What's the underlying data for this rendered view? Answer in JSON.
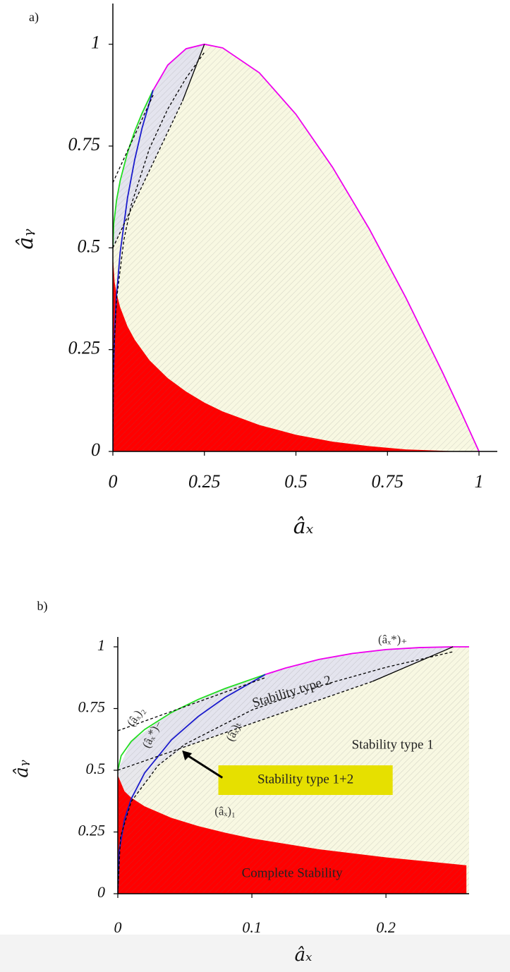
{
  "chart_data": [
    {
      "type": "line",
      "title": "a)",
      "xlabel": "âₓ",
      "ylabel": "âᵧ",
      "xlim": [
        0,
        1.05
      ],
      "ylim": [
        0,
        1.1
      ],
      "xticks": [
        0,
        0.25,
        0.5,
        0.75,
        1
      ],
      "yticks": [
        0,
        0.25,
        0.5,
        0.75,
        1
      ],
      "regions": [
        {
          "color": "#f8f8e2",
          "x": [
            0,
            0,
            0.01,
            0.04,
            0.08,
            0.11,
            0.15,
            0.2,
            0.25,
            0.3,
            0.4,
            0.5,
            0.6,
            0.7,
            0.8,
            0.9,
            1
          ],
          "y": [
            0,
            0.5,
            0.617,
            0.734,
            0.831,
            0.888,
            0.949,
            0.989,
            1,
            0.991,
            0.93,
            0.828,
            0.698,
            0.547,
            0.378,
            0.195,
            0
          ]
        },
        {
          "color": "#e4e4ee",
          "x": [
            0,
            0.01,
            0.04,
            0.08,
            0.11,
            0.15,
            0.2,
            0.25,
            0.19,
            0.1,
            0
          ],
          "y": [
            0.5,
            0.617,
            0.734,
            0.831,
            0.888,
            0.949,
            0.989,
            1,
            0.86,
            0.69,
            0.5
          ]
        }
      ],
      "series": [
        {
          "color": "#ff0000",
          "area": true,
          "x": [
            0,
            0.005,
            0.01,
            0.02,
            0.04,
            0.06,
            0.1,
            0.15,
            0.2,
            0.25,
            0.3,
            0.4,
            0.5,
            0.6,
            0.7,
            0.8,
            0.92
          ],
          "values": [
            0.48,
            0.415,
            0.389,
            0.354,
            0.307,
            0.274,
            0.224,
            0.18,
            0.147,
            0.12,
            0.098,
            0.065,
            0.041,
            0.024,
            0.013,
            0.005,
            0.001
          ]
        },
        {
          "color": "#22dd22",
          "x": [
            0,
            0.0025,
            0.01,
            0.02,
            0.04,
            0.06,
            0.08,
            0.11
          ],
          "values": [
            0.5,
            0.559,
            0.617,
            0.665,
            0.734,
            0.787,
            0.831,
            0.888
          ]
        },
        {
          "color": "#1a1acc",
          "x": [
            0,
            0.001,
            0.005,
            0.01,
            0.02,
            0.04,
            0.06,
            0.08,
            0.11
          ],
          "values": [
            0,
            0.171,
            0.301,
            0.384,
            0.489,
            0.623,
            0.718,
            0.795,
            0.888
          ]
        },
        {
          "color": "#ee00ee",
          "x": [
            0.11,
            0.15,
            0.2,
            0.25,
            0.3,
            0.4,
            0.5,
            0.6,
            0.7,
            0.8,
            0.9,
            0.95,
            1
          ],
          "values": [
            0.887,
            0.949,
            0.989,
            1,
            0.991,
            0.93,
            0.828,
            0.698,
            0.547,
            0.378,
            0.195,
            0.099,
            0
          ]
        },
        {
          "color": "#000000",
          "dash": true,
          "x": [
            0,
            0.11
          ],
          "values": [
            0.66,
            0.875
          ]
        },
        {
          "color": "#000000",
          "dash": true,
          "x": [
            0,
            0.1,
            0.19
          ],
          "values": [
            0.5,
            0.69,
            0.86
          ]
        },
        {
          "color": "#000000",
          "x": [
            0.19,
            0.25
          ],
          "values": [
            0.86,
            1
          ]
        },
        {
          "color": "#000000",
          "dash": true,
          "x": [
            0,
            0.002,
            0.01,
            0.03,
            0.05,
            0.1,
            0.15,
            0.2,
            0.25
          ],
          "values": [
            0,
            0.23,
            0.373,
            0.519,
            0.605,
            0.744,
            0.841,
            0.917,
            0.98
          ]
        }
      ]
    },
    {
      "type": "line",
      "title": "b)",
      "xlabel": "âₓ",
      "ylabel": "âᵧ",
      "xlim": [
        0,
        0.262
      ],
      "ylim": [
        0,
        1.04
      ],
      "xticks": [
        0,
        0.1,
        0.2
      ],
      "yticks": [
        0,
        0.25,
        0.5,
        0.75,
        1
      ],
      "annotations": [
        "(âₓ*)₊",
        "Stability type 2",
        "(âₓ)₂",
        "(âₓ*)₋",
        "(âₓ)ₜ",
        "Stability type 1",
        "(âₓ)₁",
        "Complete Stability"
      ],
      "box_label": "Stability type 1+2",
      "box_color": "#e6e000",
      "regions": [
        {
          "color": "#f8f8e2",
          "x": [
            0,
            0,
            0.01,
            0.04,
            0.08,
            0.11,
            0.15,
            0.2,
            0.25,
            0.262,
            0.262
          ],
          "y": [
            0,
            0.5,
            0.617,
            0.734,
            0.831,
            0.888,
            0.949,
            0.989,
            1,
            1,
            0
          ]
        },
        {
          "color": "#e4e4ee",
          "x": [
            0,
            0.01,
            0.04,
            0.08,
            0.11,
            0.15,
            0.2,
            0.25,
            0.19,
            0.1,
            0
          ],
          "y": [
            0.5,
            0.617,
            0.734,
            0.831,
            0.888,
            0.949,
            0.989,
            1,
            0.86,
            0.69,
            0.5
          ]
        },
        {
          "color": "#e8e8ec",
          "x": [
            0,
            0,
            0.05,
            0.03,
            0.01,
            0.005,
            0
          ],
          "y": [
            0.48,
            0.5,
            0.595,
            0.519,
            0.373,
            0.415,
            0.48
          ]
        }
      ],
      "series": [
        {
          "color": "#ff0000",
          "area": true,
          "x": [
            0,
            0.005,
            0.01,
            0.02,
            0.04,
            0.06,
            0.08,
            0.1,
            0.15,
            0.2,
            0.26
          ],
          "values": [
            0.48,
            0.415,
            0.389,
            0.354,
            0.307,
            0.274,
            0.247,
            0.224,
            0.18,
            0.147,
            0.115
          ]
        },
        {
          "color": "#22dd22",
          "x": [
            0,
            0.0025,
            0.01,
            0.02,
            0.04,
            0.06,
            0.08,
            0.11
          ],
          "values": [
            0.5,
            0.559,
            0.617,
            0.665,
            0.734,
            0.787,
            0.831,
            0.888
          ]
        },
        {
          "color": "#1a1acc",
          "x": [
            0,
            0.001,
            0.005,
            0.01,
            0.02,
            0.04,
            0.06,
            0.08,
            0.11
          ],
          "values": [
            0,
            0.171,
            0.301,
            0.384,
            0.489,
            0.623,
            0.718,
            0.795,
            0.888
          ]
        },
        {
          "color": "#ee00ee",
          "x": [
            0.11,
            0.125,
            0.15,
            0.175,
            0.2,
            0.225,
            0.25,
            0.262
          ],
          "values": [
            0.888,
            0.914,
            0.949,
            0.973,
            0.989,
            0.997,
            1,
            1
          ]
        },
        {
          "color": "#000000",
          "dash": true,
          "x": [
            0,
            0.11
          ],
          "values": [
            0.66,
            0.875
          ]
        },
        {
          "color": "#000000",
          "dash": true,
          "x": [
            0,
            0.1,
            0.19
          ],
          "values": [
            0.5,
            0.69,
            0.86
          ]
        },
        {
          "color": "#000000",
          "x": [
            0.19,
            0.25
          ],
          "values": [
            0.86,
            1
          ]
        },
        {
          "color": "#000000",
          "dash": true,
          "x": [
            0,
            0.002,
            0.01,
            0.03,
            0.05,
            0.1,
            0.15,
            0.2,
            0.25
          ],
          "values": [
            0,
            0.23,
            0.373,
            0.519,
            0.605,
            0.744,
            0.841,
            0.917,
            0.98
          ]
        }
      ]
    }
  ]
}
